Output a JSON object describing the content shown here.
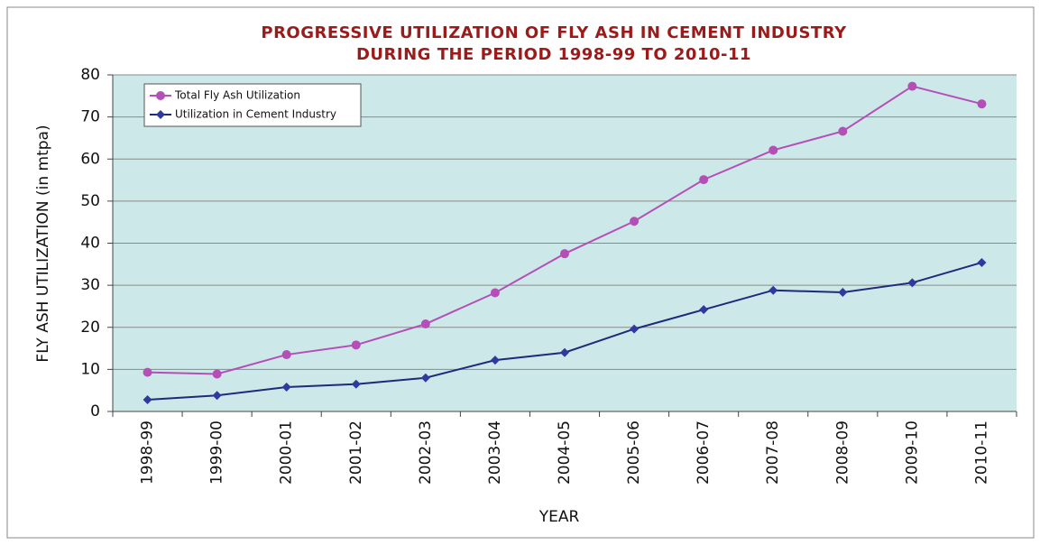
{
  "chart_data": {
    "type": "line",
    "title": [
      "PROGRESSIVE UTILIZATION OF FLY ASH IN CEMENT INDUSTRY",
      "DURING THE PERIOD 1998-99 TO 2010-11"
    ],
    "x_label": "YEAR",
    "y_label": "FLY ASH UTILIZATION (in mtpa)",
    "categories": [
      "1998-99",
      "1999-00",
      "2000-01",
      "2001-02",
      "2002-03",
      "2003-04",
      "2004-05",
      "2005-06",
      "2006-07",
      "2007-08",
      "2008-09",
      "2009-10",
      "2010-11"
    ],
    "series": [
      {
        "name": "Total Fly Ash Utilization",
        "color": "#b54fb8",
        "marker": "circle",
        "values": [
          9.3,
          8.9,
          13.5,
          15.8,
          20.8,
          28.2,
          37.5,
          45.2,
          55.1,
          62.1,
          66.6,
          77.3,
          73.1
        ]
      },
      {
        "name": "Utilization in Cement Industry",
        "color": "#1f2a7a",
        "marker": "diamond",
        "values": [
          2.8,
          3.8,
          5.8,
          6.5,
          8.0,
          12.2,
          14.0,
          19.6,
          24.2,
          28.8,
          28.3,
          30.6,
          35.4
        ]
      }
    ],
    "ylim": [
      0,
      80
    ],
    "yticks": [
      0,
      10,
      20,
      30,
      40,
      50,
      60,
      70,
      80
    ],
    "grid": true,
    "legend": "top-left",
    "plot_background": "#cde8e8"
  }
}
